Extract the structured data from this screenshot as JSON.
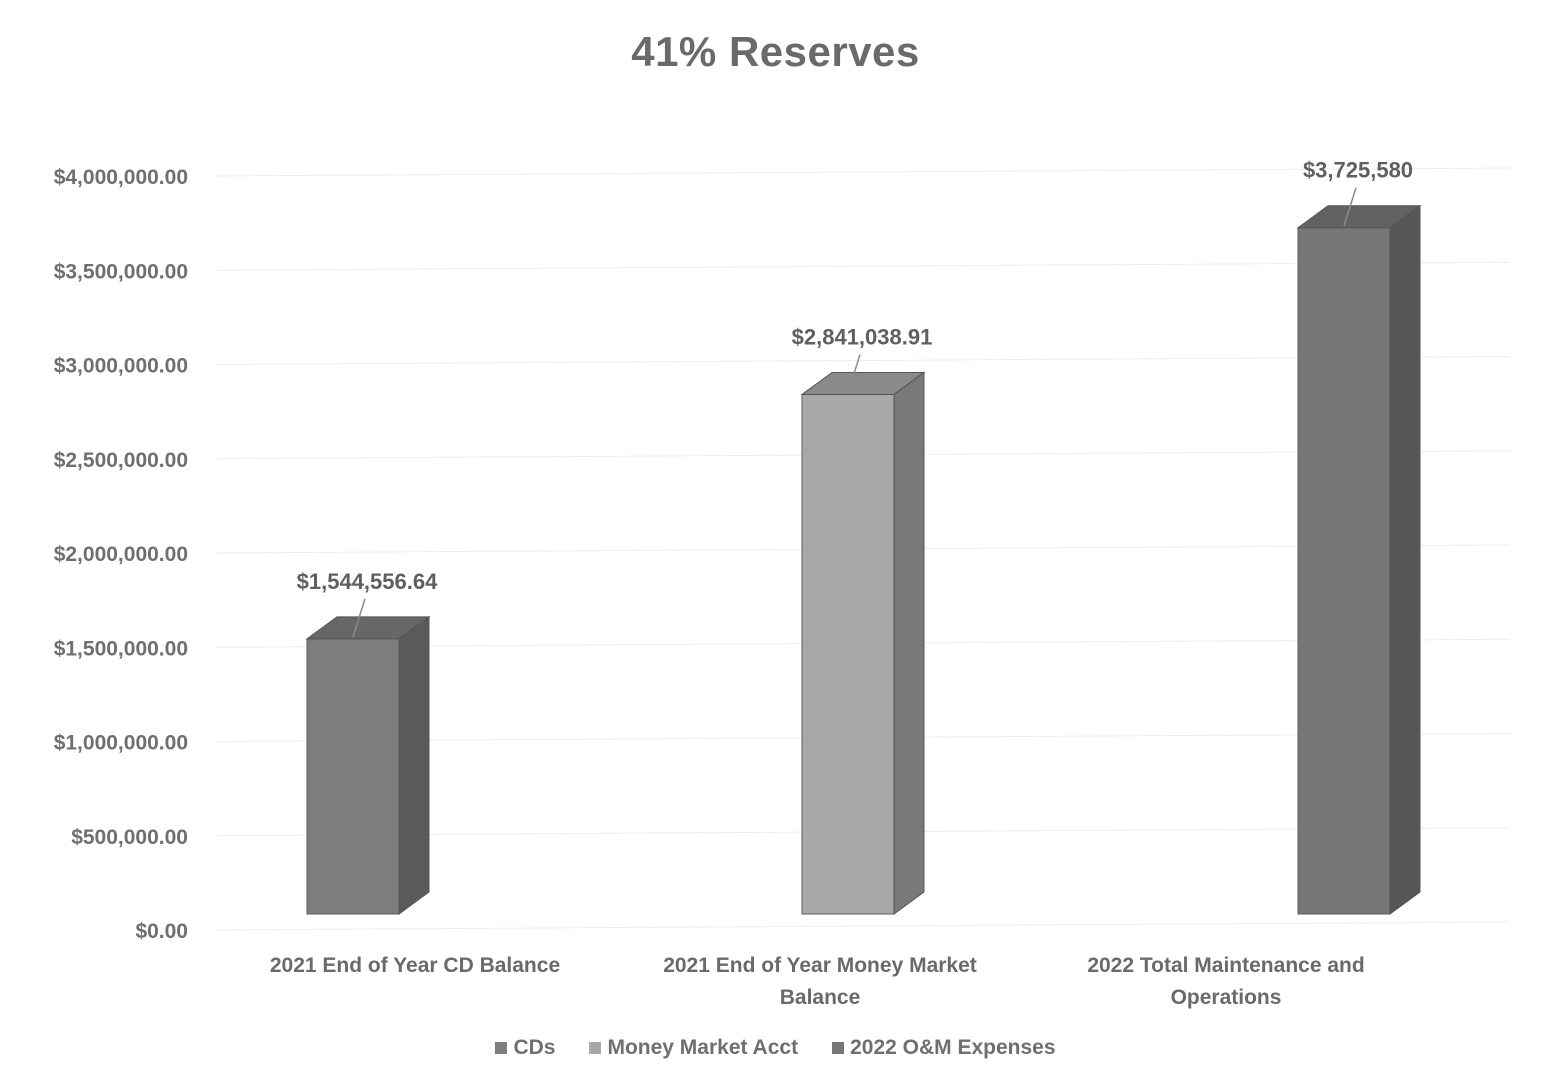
{
  "chart_data": {
    "type": "bar",
    "title": "41% Reserves",
    "categories": [
      "2021 End of Year CD Balance",
      "2021 End of Year Money Market Balance",
      "2022 Total Maintenance and Operations"
    ],
    "category_lines": [
      [
        "2021 End of Year CD Balance"
      ],
      [
        "2021 End of Year Money Market",
        "Balance"
      ],
      [
        "2022 Total Maintenance and",
        "Operations"
      ]
    ],
    "series": [
      {
        "name": "CDs",
        "color": "#7d7d7d",
        "values": [
          1544556.64,
          null,
          null
        ]
      },
      {
        "name": "Money Market Acct",
        "color": "#a8a8a8",
        "values": [
          null,
          2841038.91,
          null
        ]
      },
      {
        "name": "2022 O&M Expenses",
        "color": "#777777",
        "values": [
          null,
          null,
          3725580
        ]
      }
    ],
    "data_labels": [
      "$1,544,556.64",
      "$2,841,038.91",
      "$3,725,580"
    ],
    "yticks": [
      0,
      500000,
      1000000,
      1500000,
      2000000,
      2500000,
      3000000,
      3500000,
      4000000
    ],
    "ytick_labels": [
      "$0.00",
      "$500,000.00",
      "$1,000,000.00",
      "$1,500,000.00",
      "$2,000,000.00",
      "$2,500,000.00",
      "$3,000,000.00",
      "$3,500,000.00",
      "$4,000,000.00"
    ],
    "ylim": [
      0,
      4000000
    ],
    "grid": true,
    "legend_position": "bottom",
    "style": "3d-column"
  }
}
